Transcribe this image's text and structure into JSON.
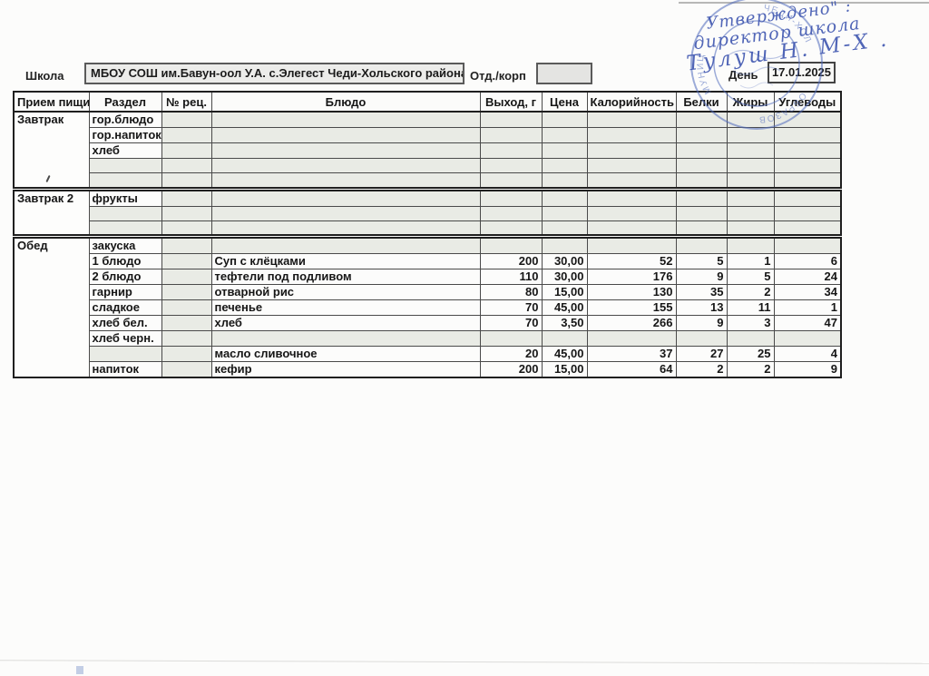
{
  "form": {
    "school_label": "Школа",
    "school_name": "МБОУ СОШ им.Бавун-оол У.А. с.Элегест Чеди-Хольского района",
    "dept_label": "Отд./корп",
    "dept_value": "",
    "day_label": "День",
    "day_value": "17.01.2025"
  },
  "signature": {
    "line1": "Утверждено\" :",
    "line2": "директор школа",
    "line3": "Тулуш Н. М-Х ."
  },
  "stamp": {
    "fragments": [
      "ЧЕДИ-ХОЛ",
      "ОБРАЗОВ",
      "МУНИЦ"
    ]
  },
  "colors": {
    "ink_blue": "#3f56b0",
    "stamp_blue": "#4f6abc",
    "border_dark": "#1f1f1f",
    "empty_cell_tint": "#e9ebe5"
  },
  "table": {
    "columns": [
      "Прием пищи",
      "Раздел",
      "№ рец.",
      "Блюдо",
      "Выход, г",
      "Цена",
      "Калорийность",
      "Белки",
      "Жиры",
      "Углеводы"
    ],
    "sections": [
      {
        "meal": "Завтрак",
        "rows": [
          {
            "razdel": "гор.блюдо",
            "rec": "",
            "dish": "",
            "out": "",
            "price": "",
            "cal": "",
            "prot": "",
            "fat": "",
            "carb": ""
          },
          {
            "razdel": "гор.напиток",
            "rec": "",
            "dish": "",
            "out": "",
            "price": "",
            "cal": "",
            "prot": "",
            "fat": "",
            "carb": ""
          },
          {
            "razdel": "хлеб",
            "rec": "",
            "dish": "",
            "out": "",
            "price": "",
            "cal": "",
            "prot": "",
            "fat": "",
            "carb": ""
          },
          {
            "razdel": "",
            "rec": "",
            "dish": "",
            "out": "",
            "price": "",
            "cal": "",
            "prot": "",
            "fat": "",
            "carb": ""
          },
          {
            "razdel": "",
            "rec": "",
            "dish": "",
            "out": "",
            "price": "",
            "cal": "",
            "prot": "",
            "fat": "",
            "carb": ""
          }
        ]
      },
      {
        "meal": "Завтрак 2",
        "rows": [
          {
            "razdel": "фрукты",
            "rec": "",
            "dish": "",
            "out": "",
            "price": "",
            "cal": "",
            "prot": "",
            "fat": "",
            "carb": ""
          },
          {
            "razdel": "",
            "rec": "",
            "dish": "",
            "out": "",
            "price": "",
            "cal": "",
            "prot": "",
            "fat": "",
            "carb": ""
          },
          {
            "razdel": "",
            "rec": "",
            "dish": "",
            "out": "",
            "price": "",
            "cal": "",
            "prot": "",
            "fat": "",
            "carb": ""
          }
        ]
      },
      {
        "meal": "Обед",
        "rows": [
          {
            "razdel": "закуска",
            "rec": "",
            "dish": "",
            "out": "",
            "price": "",
            "cal": "",
            "prot": "",
            "fat": "",
            "carb": ""
          },
          {
            "razdel": "1 блюдо",
            "rec": "",
            "dish": "Суп с клёцками",
            "out": "200",
            "price": "30,00",
            "cal": "52",
            "prot": "5",
            "fat": "1",
            "carb": "6"
          },
          {
            "razdel": "2 блюдо",
            "rec": "",
            "dish": "тефтели под подливом",
            "out": "110",
            "price": "30,00",
            "cal": "176",
            "prot": "9",
            "fat": "5",
            "carb": "24"
          },
          {
            "razdel": "гарнир",
            "rec": "",
            "dish": "отварной рис",
            "out": "80",
            "price": "15,00",
            "cal": "130",
            "prot": "35",
            "fat": "2",
            "carb": "34"
          },
          {
            "razdel": "сладкое",
            "rec": "",
            "dish": "печенье",
            "out": "70",
            "price": "45,00",
            "cal": "155",
            "prot": "13",
            "fat": "11",
            "carb": "1"
          },
          {
            "razdel": "хлеб бел.",
            "rec": "",
            "dish": "хлеб",
            "out": "70",
            "price": "3,50",
            "cal": "266",
            "prot": "9",
            "fat": "3",
            "carb": "47"
          },
          {
            "razdel": "хлеб черн.",
            "rec": "",
            "dish": "",
            "out": "",
            "price": "",
            "cal": "",
            "prot": "",
            "fat": "",
            "carb": ""
          },
          {
            "razdel": "",
            "rec": "",
            "dish": "масло сливочное",
            "out": "20",
            "price": "45,00",
            "cal": "37",
            "prot": "27",
            "fat": "25",
            "carb": "4"
          },
          {
            "razdel": "напиток",
            "rec": "",
            "dish": "кефир",
            "out": "200",
            "price": "15,00",
            "cal": "64",
            "prot": "2",
            "fat": "2",
            "carb": "9"
          }
        ]
      }
    ]
  }
}
